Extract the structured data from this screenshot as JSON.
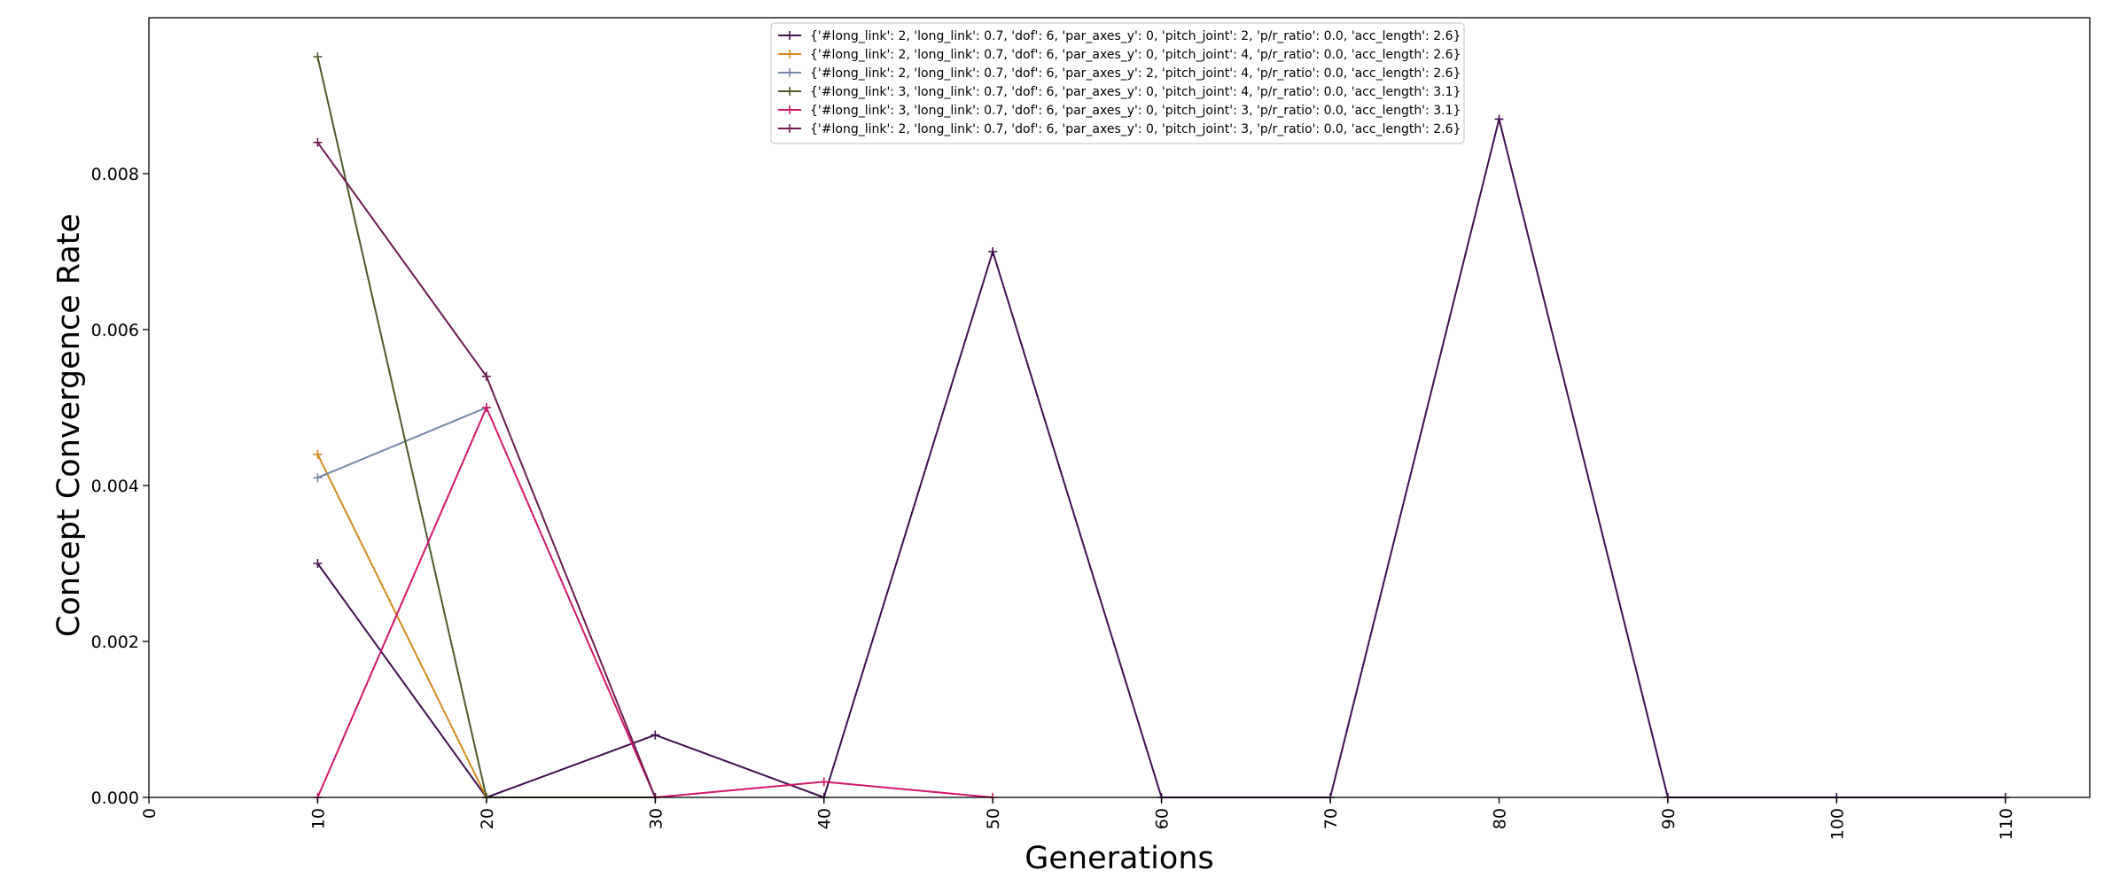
{
  "chart_data": {
    "type": "line",
    "xlabel": "Generations",
    "ylabel": "Concept Convergence Rate",
    "xlim": [
      0,
      115
    ],
    "ylim": [
      0,
      0.01
    ],
    "xticks": [
      0,
      10,
      20,
      30,
      40,
      50,
      60,
      70,
      80,
      90,
      100,
      110
    ],
    "yticks": [
      0.0,
      0.002,
      0.004,
      0.006,
      0.008
    ],
    "ytick_labels": [
      "0.000",
      "0.002",
      "0.004",
      "0.006",
      "0.008"
    ],
    "legend_position": "top-center",
    "grid": false,
    "series": [
      {
        "name": "{'#long_link': 2, 'long_link': 0.7, 'dof': 6, 'par_axes_y': 0, 'pitch_joint': 2, 'p/r_ratio': 0.0, 'acc_length': 2.6}",
        "color": "#3f0f4f",
        "x": [
          10,
          20,
          30,
          40,
          50,
          60,
          70,
          80,
          90,
          100,
          110
        ],
        "y": [
          0.003,
          0.0,
          0.0008,
          0.0,
          0.007,
          0.0,
          0.0,
          0.0087,
          0.0,
          0.0,
          0.0
        ]
      },
      {
        "name": "{'#long_link': 2, 'long_link': 0.7, 'dof': 6, 'par_axes_y': 0, 'pitch_joint': 4, 'p/r_ratio': 0.0, 'acc_length': 2.6}",
        "color": "#d4891c",
        "x": [
          10,
          20
        ],
        "y": [
          0.0044,
          0.0
        ]
      },
      {
        "name": "{'#long_link': 2, 'long_link': 0.7, 'dof': 6, 'par_axes_y': 2, 'pitch_joint': 4, 'p/r_ratio': 0.0, 'acc_length': 2.6}",
        "color": "#7487a6",
        "x": [
          10,
          20
        ],
        "y": [
          0.0041,
          0.005
        ]
      },
      {
        "name": "{'#long_link': 3, 'long_link': 0.7, 'dof': 6, 'par_axes_y': 0, 'pitch_joint': 4, 'p/r_ratio': 0.0, 'acc_length': 3.1}",
        "color": "#4c5a2c",
        "x": [
          10,
          20,
          30
        ],
        "y": [
          0.0095,
          0.0,
          0.0
        ]
      },
      {
        "name": "{'#long_link': 3, 'long_link': 0.7, 'dof': 6, 'par_axes_y': 0, 'pitch_joint': 3, 'p/r_ratio': 0.0, 'acc_length': 3.1}",
        "color": "#d1176a",
        "x": [
          10,
          20,
          30,
          40,
          50
        ],
        "y": [
          0.0,
          0.005,
          0.0,
          0.0002,
          0.0
        ]
      },
      {
        "name": "{'#long_link': 2, 'long_link': 0.7, 'dof': 6, 'par_axes_y': 0, 'pitch_joint': 3, 'p/r_ratio': 0.0, 'acc_length': 2.6}",
        "color": "#6e1a50",
        "x": [
          10,
          20,
          30
        ],
        "y": [
          0.0084,
          0.0054,
          0.0
        ]
      }
    ]
  }
}
